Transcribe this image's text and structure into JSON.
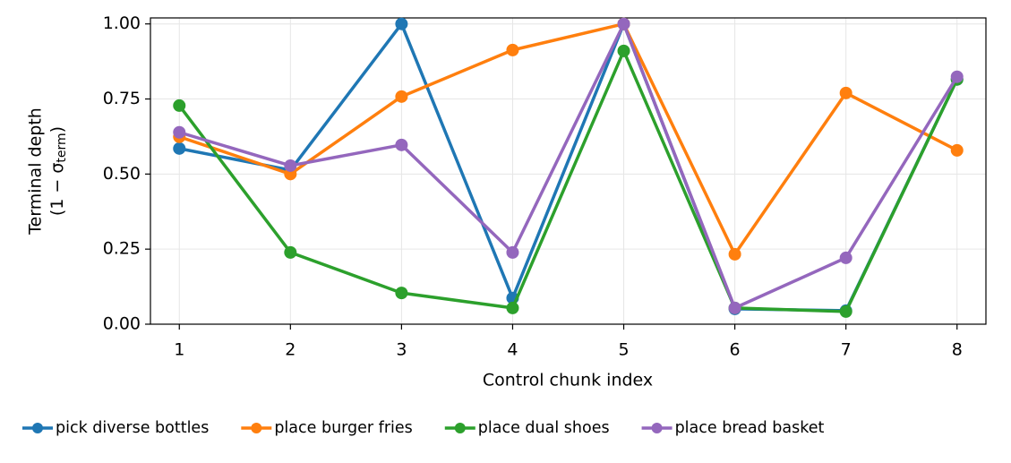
{
  "chart_data": {
    "type": "line",
    "xlabel": "Control chunk index",
    "ylabel": "Terminal depth",
    "ylabel_math": {
      "prefix": "(1 − σ",
      "subscript": "term",
      "suffix": ")"
    },
    "x": [
      1,
      2,
      3,
      4,
      5,
      6,
      7,
      8
    ],
    "series": [
      {
        "name": "pick diverse bottles",
        "color": "#1f77b4",
        "values": [
          0.585,
          0.513,
          1.0,
          0.087,
          1.0,
          0.051,
          0.045,
          0.815
        ]
      },
      {
        "name": "place burger fries",
        "color": "#ff7f0e",
        "values": [
          0.624,
          0.5,
          0.758,
          0.913,
          1.0,
          0.233,
          0.77,
          0.579
        ]
      },
      {
        "name": "place dual shoes",
        "color": "#2ca02c",
        "values": [
          0.728,
          0.239,
          0.104,
          0.054,
          0.91,
          0.054,
          0.042,
          0.815
        ]
      },
      {
        "name": "place bread basket",
        "color": "#9467bd",
        "values": [
          0.639,
          0.528,
          0.597,
          0.239,
          1.0,
          0.054,
          0.221,
          0.824
        ]
      }
    ],
    "xlim": [
      0.74,
      8.26
    ],
    "ylim": [
      0,
      1.02
    ],
    "xticks": [
      1,
      2,
      3,
      4,
      5,
      6,
      7,
      8
    ],
    "yticks": [
      {
        "value": 0,
        "label": "0.00"
      },
      {
        "value": 0.25,
        "label": "0.25"
      },
      {
        "value": 0.5,
        "label": "0.50"
      },
      {
        "value": 0.75,
        "label": "0.75"
      },
      {
        "value": 1,
        "label": "1.00"
      }
    ],
    "grid": true,
    "legend": "bottom"
  }
}
